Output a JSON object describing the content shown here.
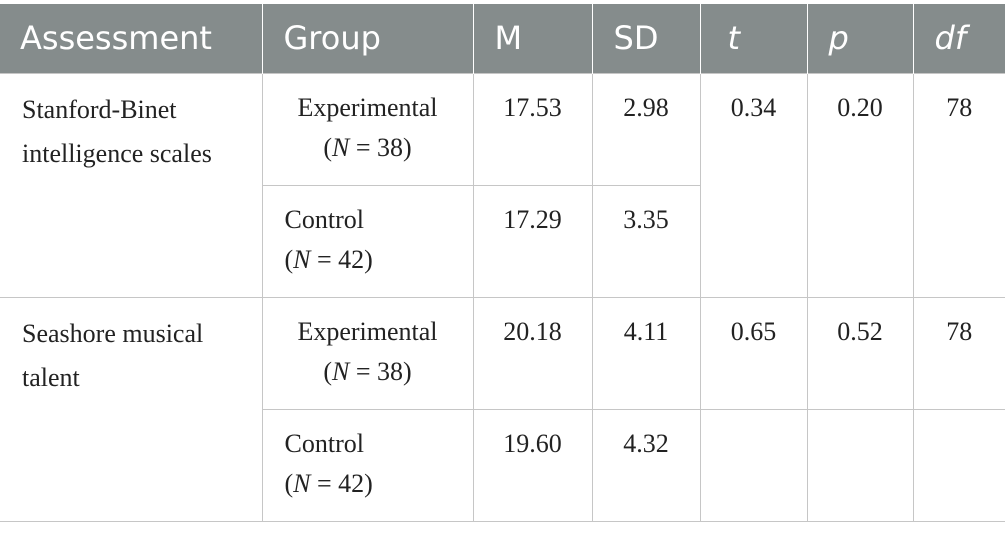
{
  "headers": {
    "assessment": "Assessment",
    "group": "Group",
    "m": "M",
    "sd": "SD",
    "t": "t",
    "p": "p",
    "df": "df"
  },
  "rows": [
    {
      "assessment": "Stanford-Binet intelligence scales",
      "t": "0.34",
      "p": "0.20",
      "df": "78",
      "groups": [
        {
          "name": "Experimental",
          "n_label": "N",
          "n_value": " = 38)",
          "m": "17.53",
          "sd": "2.98"
        },
        {
          "name": "Control",
          "n_label": "N",
          "n_value": " = 42)",
          "m": "17.29",
          "sd": "3.35"
        }
      ]
    },
    {
      "assessment": "Seashore musical talent",
      "t": "0.65",
      "p": "0.52",
      "df": "78",
      "groups": [
        {
          "name": "Experimental",
          "n_label": "N",
          "n_value": " = 38)",
          "m": "20.18",
          "sd": "4.11"
        },
        {
          "name": "Control",
          "n_label": "N",
          "n_value": " = 42)",
          "m": "19.60",
          "sd": "4.32"
        }
      ]
    }
  ]
}
